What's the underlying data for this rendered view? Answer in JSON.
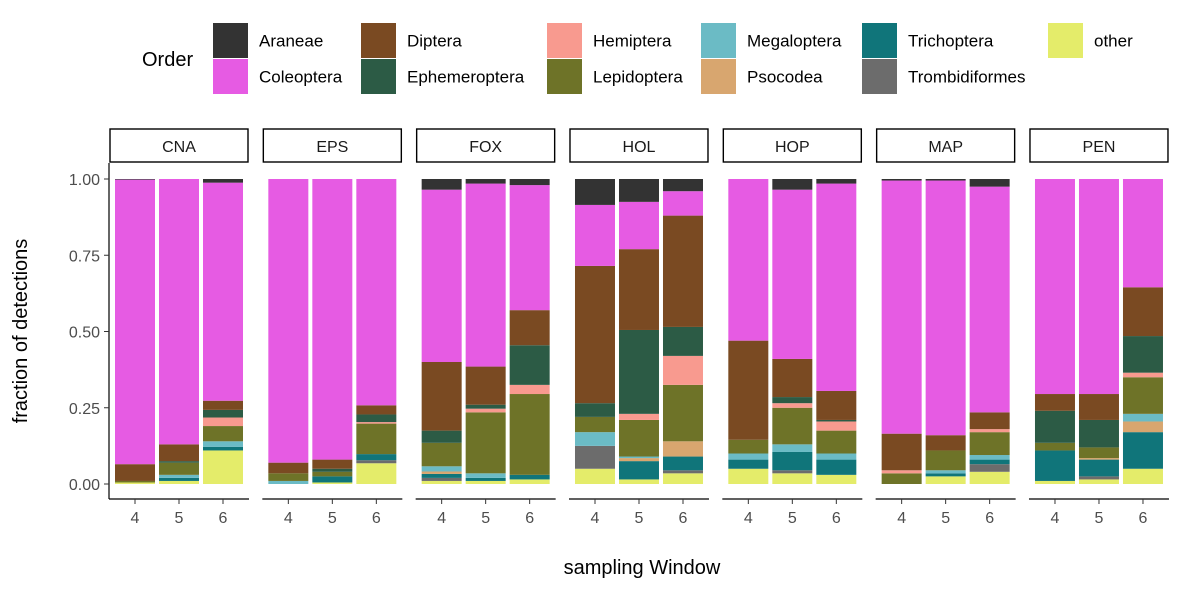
{
  "chart_data": {
    "type": "bar",
    "stacked": true,
    "faceted": true,
    "xlabel": "sampling Window",
    "ylabel": "fraction of detections",
    "ylim": [
      0,
      1
    ],
    "y_ticks": [
      "0.00",
      "0.25",
      "0.50",
      "0.75",
      "1.00"
    ],
    "y_tick_values": [
      0,
      0.25,
      0.5,
      0.75,
      1
    ],
    "categories": [
      "4",
      "5",
      "6"
    ],
    "legend": {
      "title": "Order",
      "position": "top",
      "items": [
        {
          "name": "Araneae",
          "color": "#333333"
        },
        {
          "name": "Coleoptera",
          "color": "#E65BE3"
        },
        {
          "name": "Diptera",
          "color": "#7A4A22"
        },
        {
          "name": "Ephemeroptera",
          "color": "#2C5B45"
        },
        {
          "name": "Hemiptera",
          "color": "#F89A8F"
        },
        {
          "name": "Lepidoptera",
          "color": "#6E7328"
        },
        {
          "name": "Megaloptera",
          "color": "#6BBBC5"
        },
        {
          "name": "Psocodea",
          "color": "#D8A66F"
        },
        {
          "name": "Trichoptera",
          "color": "#10757A"
        },
        {
          "name": "Trombidiformes",
          "color": "#6C6C6C"
        },
        {
          "name": "other",
          "color": "#E4EC6A"
        }
      ]
    },
    "stack_order_bottom_to_top": [
      "other",
      "Trombidiformes",
      "Trichoptera",
      "Psocodea",
      "Megaloptera",
      "Lepidoptera",
      "Hemiptera",
      "Ephemeroptera",
      "Diptera",
      "Coleoptera",
      "Araneae"
    ],
    "panels": [
      {
        "name": "CNA",
        "bars": [
          {
            "x": "4",
            "values": {
              "other": 0.005,
              "Lepidoptera": 0.005,
              "Diptera": 0.055,
              "Coleoptera": 0.933,
              "Araneae": 0.002
            }
          },
          {
            "x": "5",
            "values": {
              "other": 0.01,
              "Trichoptera": 0.01,
              "Megaloptera": 0.01,
              "Lepidoptera": 0.04,
              "Ephemeroptera": 0.005,
              "Diptera": 0.055,
              "Coleoptera": 0.87
            }
          },
          {
            "x": "6",
            "values": {
              "other": 0.11,
              "Trichoptera": 0.012,
              "Megaloptera": 0.018,
              "Lepidoptera": 0.05,
              "Hemiptera": 0.028,
              "Ephemeroptera": 0.025,
              "Diptera": 0.03,
              "Coleoptera": 0.715,
              "Araneae": 0.012
            }
          }
        ]
      },
      {
        "name": "EPS",
        "bars": [
          {
            "x": "4",
            "values": {
              "Megaloptera": 0.01,
              "Lepidoptera": 0.025,
              "Diptera": 0.035,
              "Coleoptera": 0.93
            }
          },
          {
            "x": "5",
            "values": {
              "other": 0.005,
              "Trichoptera": 0.02,
              "Lepidoptera": 0.015,
              "Ephemeroptera": 0.01,
              "Diptera": 0.03,
              "Coleoptera": 0.92
            }
          },
          {
            "x": "6",
            "values": {
              "other": 0.068,
              "Trombidiformes": 0.01,
              "Trichoptera": 0.02,
              "Lepidoptera": 0.1,
              "Hemiptera": 0.005,
              "Ephemeroptera": 0.025,
              "Diptera": 0.03,
              "Coleoptera": 0.742
            }
          }
        ]
      },
      {
        "name": "FOX",
        "bars": [
          {
            "x": "4",
            "values": {
              "other": 0.01,
              "Trombidiformes": 0.01,
              "Psocodea": 0.008,
              "Trichoptera": 0.013,
              "Megaloptera": 0.017,
              "Lepidoptera": 0.077,
              "Ephemeroptera": 0.04,
              "Diptera": 0.225,
              "Coleoptera": 0.565,
              "Araneae": 0.035
            }
          },
          {
            "x": "5",
            "values": {
              "other": 0.01,
              "Trichoptera": 0.01,
              "Megaloptera": 0.015,
              "Lepidoptera": 0.2,
              "Hemiptera": 0.012,
              "Ephemeroptera": 0.013,
              "Diptera": 0.125,
              "Coleoptera": 0.6,
              "Araneae": 0.015
            }
          },
          {
            "x": "6",
            "values": {
              "other": 0.015,
              "Trichoptera": 0.015,
              "Lepidoptera": 0.265,
              "Hemiptera": 0.03,
              "Ephemeroptera": 0.13,
              "Diptera": 0.115,
              "Coleoptera": 0.41,
              "Araneae": 0.02
            }
          }
        ]
      },
      {
        "name": "HOL",
        "bars": [
          {
            "x": "4",
            "values": {
              "other": 0.05,
              "Trombidiformes": 0.075,
              "Megaloptera": 0.045,
              "Lepidoptera": 0.05,
              "Ephemeroptera": 0.045,
              "Diptera": 0.45,
              "Coleoptera": 0.2,
              "Araneae": 0.085
            }
          },
          {
            "x": "5",
            "values": {
              "other": 0.015,
              "Psocodea": 0.01,
              "Trichoptera": 0.06,
              "Megaloptera": 0.005,
              "Lepidoptera": 0.12,
              "Hemiptera": 0.02,
              "Ephemeroptera": 0.275,
              "Diptera": 0.265,
              "Coleoptera": 0.155,
              "Araneae": 0.075
            }
          },
          {
            "x": "6",
            "values": {
              "other": 0.035,
              "Trombidiformes": 0.01,
              "Trichoptera": 0.045,
              "Psocodea": 0.05,
              "Lepidoptera": 0.185,
              "Hemiptera": 0.095,
              "Ephemeroptera": 0.095,
              "Diptera": 0.365,
              "Coleoptera": 0.08,
              "Araneae": 0.04
            }
          }
        ]
      },
      {
        "name": "HOP",
        "bars": [
          {
            "x": "4",
            "values": {
              "other": 0.05,
              "Trichoptera": 0.03,
              "Megaloptera": 0.02,
              "Lepidoptera": 0.045,
              "Diptera": 0.325,
              "Coleoptera": 0.53
            }
          },
          {
            "x": "5",
            "values": {
              "other": 0.035,
              "Trombidiformes": 0.01,
              "Trichoptera": 0.06,
              "Megaloptera": 0.025,
              "Lepidoptera": 0.12,
              "Hemiptera": 0.015,
              "Ephemeroptera": 0.02,
              "Diptera": 0.125,
              "Coleoptera": 0.555,
              "Araneae": 0.035
            }
          },
          {
            "x": "6",
            "values": {
              "other": 0.03,
              "Trichoptera": 0.05,
              "Megaloptera": 0.02,
              "Lepidoptera": 0.075,
              "Hemiptera": 0.03,
              "Ephemeroptera": 0.005,
              "Diptera": 0.095,
              "Coleoptera": 0.68,
              "Araneae": 0.015
            }
          }
        ]
      },
      {
        "name": "MAP",
        "bars": [
          {
            "x": "4",
            "values": {
              "Lepidoptera": 0.035,
              "Hemiptera": 0.01,
              "Diptera": 0.12,
              "Coleoptera": 0.83,
              "Araneae": 0.005
            }
          },
          {
            "x": "5",
            "values": {
              "other": 0.025,
              "Trichoptera": 0.01,
              "Megaloptera": 0.01,
              "Lepidoptera": 0.065,
              "Diptera": 0.05,
              "Coleoptera": 0.835,
              "Araneae": 0.005
            }
          },
          {
            "x": "6",
            "values": {
              "other": 0.04,
              "Trombidiformes": 0.025,
              "Trichoptera": 0.015,
              "Megaloptera": 0.015,
              "Lepidoptera": 0.075,
              "Hemiptera": 0.01,
              "Diptera": 0.055,
              "Coleoptera": 0.74,
              "Araneae": 0.025
            }
          }
        ]
      },
      {
        "name": "PEN",
        "bars": [
          {
            "x": "4",
            "values": {
              "other": 0.01,
              "Trichoptera": 0.1,
              "Lepidoptera": 0.025,
              "Ephemeroptera": 0.105,
              "Diptera": 0.055,
              "Coleoptera": 0.705
            }
          },
          {
            "x": "5",
            "values": {
              "other": 0.015,
              "Trombidiformes": 0.01,
              "Psocodea": 0.005,
              "Trichoptera": 0.055,
              "Lepidoptera": 0.035,
              "Ephemeroptera": 0.09,
              "Diptera": 0.085,
              "Coleoptera": 0.705
            }
          },
          {
            "x": "6",
            "values": {
              "other": 0.05,
              "Trichoptera": 0.12,
              "Psocodea": 0.035,
              "Megaloptera": 0.025,
              "Lepidoptera": 0.12,
              "Hemiptera": 0.015,
              "Ephemeroptera": 0.12,
              "Diptera": 0.16,
              "Coleoptera": 0.355
            }
          }
        ]
      }
    ]
  }
}
